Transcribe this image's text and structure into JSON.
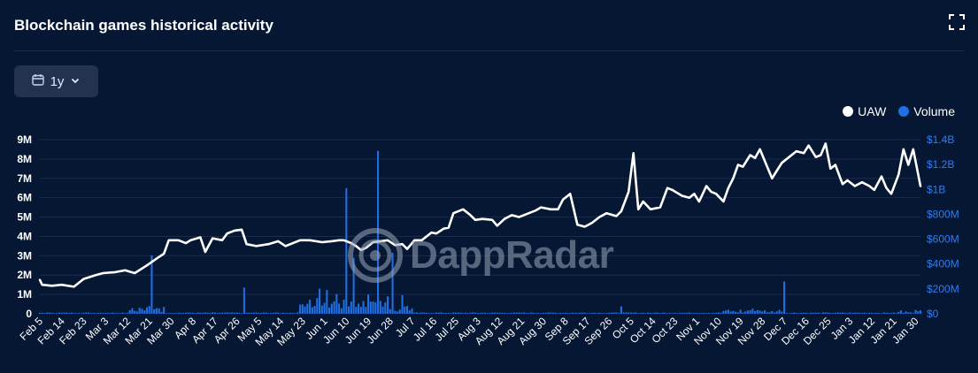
{
  "header": {
    "title": "Blockchain games historical activity",
    "expand_icon": "expand-icon"
  },
  "range_selector": {
    "label": "1y",
    "icon": "calendar-icon",
    "chevron": "chevron-down-icon"
  },
  "watermark": {
    "text": "DappRadar"
  },
  "colors": {
    "uaw": "#ffffff",
    "volume": "#1f6fe5",
    "background": "#061734",
    "grid": "#1b2b4b",
    "volume_axis_text": "#2f7cf0"
  },
  "chart_data": {
    "type": "bar+line",
    "legend": [
      {
        "name": "UAW",
        "color": "#ffffff"
      },
      {
        "name": "Volume",
        "color": "#1f6fe5"
      }
    ],
    "legend_position": "top-right",
    "grid": true,
    "x_ticks": [
      "Feb 5",
      "Feb 14",
      "Feb 23",
      "Mar 3",
      "Mar 12",
      "Mar 21",
      "Mar 30",
      "Apr 8",
      "Apr 17",
      "Apr 26",
      "May 5",
      "May 14",
      "May 23",
      "Jun 1",
      "Jun 10",
      "Jun 19",
      "Jun 28",
      "Jul 7",
      "Jul 16",
      "Jul 25",
      "Aug 3",
      "Aug 12",
      "Aug 21",
      "Aug 30",
      "Sep 8",
      "Sep 17",
      "Sep 26",
      "Oct 5",
      "Oct 14",
      "Oct 23",
      "Nov 1",
      "Nov 10",
      "Nov 19",
      "Nov 28",
      "Dec 7",
      "Dec 16",
      "Dec 25",
      "Jan 3",
      "Jan 12",
      "Jan 21",
      "Jan 30"
    ],
    "y_left": {
      "label": "UAW",
      "ticks": [
        "0",
        "1M",
        "2M",
        "3M",
        "4M",
        "5M",
        "6M",
        "7M",
        "8M",
        "9M"
      ],
      "range": [
        0,
        9000000
      ]
    },
    "y_right": {
      "label": "Volume",
      "ticks": [
        "$0",
        "$200M",
        "$400M",
        "$600M",
        "$800M",
        "$1B",
        "$1.2B",
        "$1.4B"
      ],
      "range": [
        0,
        1400000000
      ]
    },
    "series": [
      {
        "name": "UAW",
        "type": "line",
        "axis": "left",
        "points": [
          [
            "Feb 5",
            1750000
          ],
          [
            "Feb 6",
            1500000
          ],
          [
            "Feb 10",
            1450000
          ],
          [
            "Feb 14",
            1500000
          ],
          [
            "Feb 19",
            1400000
          ],
          [
            "Feb 23",
            1800000
          ],
          [
            "Feb 28",
            2000000
          ],
          [
            "Mar 3",
            2100000
          ],
          [
            "Mar 8",
            2150000
          ],
          [
            "Mar 12",
            2250000
          ],
          [
            "Mar 16",
            2100000
          ],
          [
            "Mar 21",
            2500000
          ],
          [
            "Mar 25",
            2850000
          ],
          [
            "Mar 28",
            3100000
          ],
          [
            "Mar 30",
            3800000
          ],
          [
            "Apr 3",
            3800000
          ],
          [
            "Apr 6",
            3650000
          ],
          [
            "Apr 8",
            3800000
          ],
          [
            "Apr 12",
            3950000
          ],
          [
            "Apr 14",
            3200000
          ],
          [
            "Apr 17",
            3900000
          ],
          [
            "Apr 21",
            3800000
          ],
          [
            "Apr 23",
            4150000
          ],
          [
            "Apr 26",
            4300000
          ],
          [
            "Apr 29",
            4350000
          ],
          [
            "May 1",
            3600000
          ],
          [
            "May 5",
            3500000
          ],
          [
            "May 10",
            3600000
          ],
          [
            "May 14",
            3750000
          ],
          [
            "May 17",
            3500000
          ],
          [
            "May 20",
            3650000
          ],
          [
            "May 23",
            3800000
          ],
          [
            "May 27",
            3800000
          ],
          [
            "Jun 1",
            3700000
          ],
          [
            "Jun 5",
            3750000
          ],
          [
            "Jun 8",
            3800000
          ],
          [
            "Jun 10",
            3800000
          ],
          [
            "Jun 13",
            3650000
          ],
          [
            "Jun 15",
            3500000
          ],
          [
            "Jun 17",
            3300000
          ],
          [
            "Jun 19",
            3400000
          ],
          [
            "Jun 22",
            3700000
          ],
          [
            "Jun 25",
            3750000
          ],
          [
            "Jun 28",
            3800000
          ],
          [
            "Jul 1",
            3550000
          ],
          [
            "Jul 4",
            3600000
          ],
          [
            "Jul 6",
            3350000
          ],
          [
            "Jul 9",
            3800000
          ],
          [
            "Jul 12",
            3800000
          ],
          [
            "Jul 16",
            4200000
          ],
          [
            "Jul 18",
            4150000
          ],
          [
            "Jul 21",
            4400000
          ],
          [
            "Jul 23",
            4450000
          ],
          [
            "Jul 25",
            5200000
          ],
          [
            "Jul 29",
            5400000
          ],
          [
            "Aug 1",
            5100000
          ],
          [
            "Aug 3",
            4850000
          ],
          [
            "Aug 6",
            4900000
          ],
          [
            "Aug 10",
            4850000
          ],
          [
            "Aug 12",
            4550000
          ],
          [
            "Aug 15",
            4900000
          ],
          [
            "Aug 18",
            5100000
          ],
          [
            "Aug 21",
            5000000
          ],
          [
            "Aug 25",
            5200000
          ],
          [
            "Aug 28",
            5350000
          ],
          [
            "Aug 30",
            5500000
          ],
          [
            "Sep 3",
            5400000
          ],
          [
            "Sep 6",
            5400000
          ],
          [
            "Sep 8",
            5900000
          ],
          [
            "Sep 11",
            6200000
          ],
          [
            "Sep 14",
            4600000
          ],
          [
            "Sep 17",
            4500000
          ],
          [
            "Sep 20",
            4700000
          ],
          [
            "Sep 23",
            5000000
          ],
          [
            "Sep 26",
            5200000
          ],
          [
            "Sep 30",
            5050000
          ],
          [
            "Oct 2",
            5300000
          ],
          [
            "Oct 5",
            6300000
          ],
          [
            "Oct 7",
            8300000
          ],
          [
            "Oct 9",
            5400000
          ],
          [
            "Oct 11",
            5800000
          ],
          [
            "Oct 14",
            5400000
          ],
          [
            "Oct 18",
            5500000
          ],
          [
            "Oct 21",
            6500000
          ],
          [
            "Oct 23",
            6400000
          ],
          [
            "Oct 27",
            6100000
          ],
          [
            "Oct 30",
            6000000
          ],
          [
            "Nov 1",
            6200000
          ],
          [
            "Nov 3",
            5800000
          ],
          [
            "Nov 6",
            6600000
          ],
          [
            "Nov 8",
            6300000
          ],
          [
            "Nov 10",
            6200000
          ],
          [
            "Nov 13",
            5800000
          ],
          [
            "Nov 15",
            6500000
          ],
          [
            "Nov 17",
            7000000
          ],
          [
            "Nov 19",
            7700000
          ],
          [
            "Nov 21",
            7600000
          ],
          [
            "Nov 24",
            8200000
          ],
          [
            "Nov 26",
            8050000
          ],
          [
            "Nov 28",
            8500000
          ],
          [
            "Dec 1",
            7600000
          ],
          [
            "Dec 3",
            7000000
          ],
          [
            "Dec 5",
            7400000
          ],
          [
            "Dec 7",
            7800000
          ],
          [
            "Dec 10",
            8100000
          ],
          [
            "Dec 13",
            8400000
          ],
          [
            "Dec 16",
            8300000
          ],
          [
            "Dec 18",
            8700000
          ],
          [
            "Dec 21",
            8100000
          ],
          [
            "Dec 23",
            8200000
          ],
          [
            "Dec 25",
            8800000
          ],
          [
            "Dec 27",
            7500000
          ],
          [
            "Dec 29",
            7700000
          ],
          [
            "Jan 1",
            6700000
          ],
          [
            "Jan 3",
            6900000
          ],
          [
            "Jan 6",
            6600000
          ],
          [
            "Jan 9",
            6800000
          ],
          [
            "Jan 12",
            6600000
          ],
          [
            "Jan 14",
            6400000
          ],
          [
            "Jan 17",
            7100000
          ],
          [
            "Jan 19",
            6500000
          ],
          [
            "Jan 21",
            6200000
          ],
          [
            "Jan 24",
            7200000
          ],
          [
            "Jan 26",
            8500000
          ],
          [
            "Jan 28",
            7700000
          ],
          [
            "Jan 30",
            8500000
          ],
          [
            "Feb 2",
            6600000
          ]
        ]
      },
      {
        "name": "Volume",
        "type": "bar",
        "axis": "right",
        "baseline": 8000000,
        "spikes": [
          [
            "Mar 23",
            470000000
          ],
          [
            "Apr 30",
            210000000
          ],
          [
            "Jun 11",
            1010000000
          ],
          [
            "Jun 14",
            450000000
          ],
          [
            "Jun 24",
            1310000000
          ],
          [
            "Jun 30",
            490000000
          ],
          [
            "Jul 4",
            150000000
          ],
          [
            "Oct 2",
            60000000
          ],
          [
            "Dec 8",
            260000000
          ]
        ],
        "ranges": [
          [
            "Mar 14",
            "Mar 28",
            50000000
          ],
          [
            "May 23",
            "Jun 28",
            120000000
          ],
          [
            "Jun 28",
            "Jul 8",
            50000000
          ],
          [
            "Nov 13",
            "Dec 7",
            25000000
          ],
          [
            "Jan 24",
            "Feb 2",
            20000000
          ]
        ]
      }
    ]
  }
}
